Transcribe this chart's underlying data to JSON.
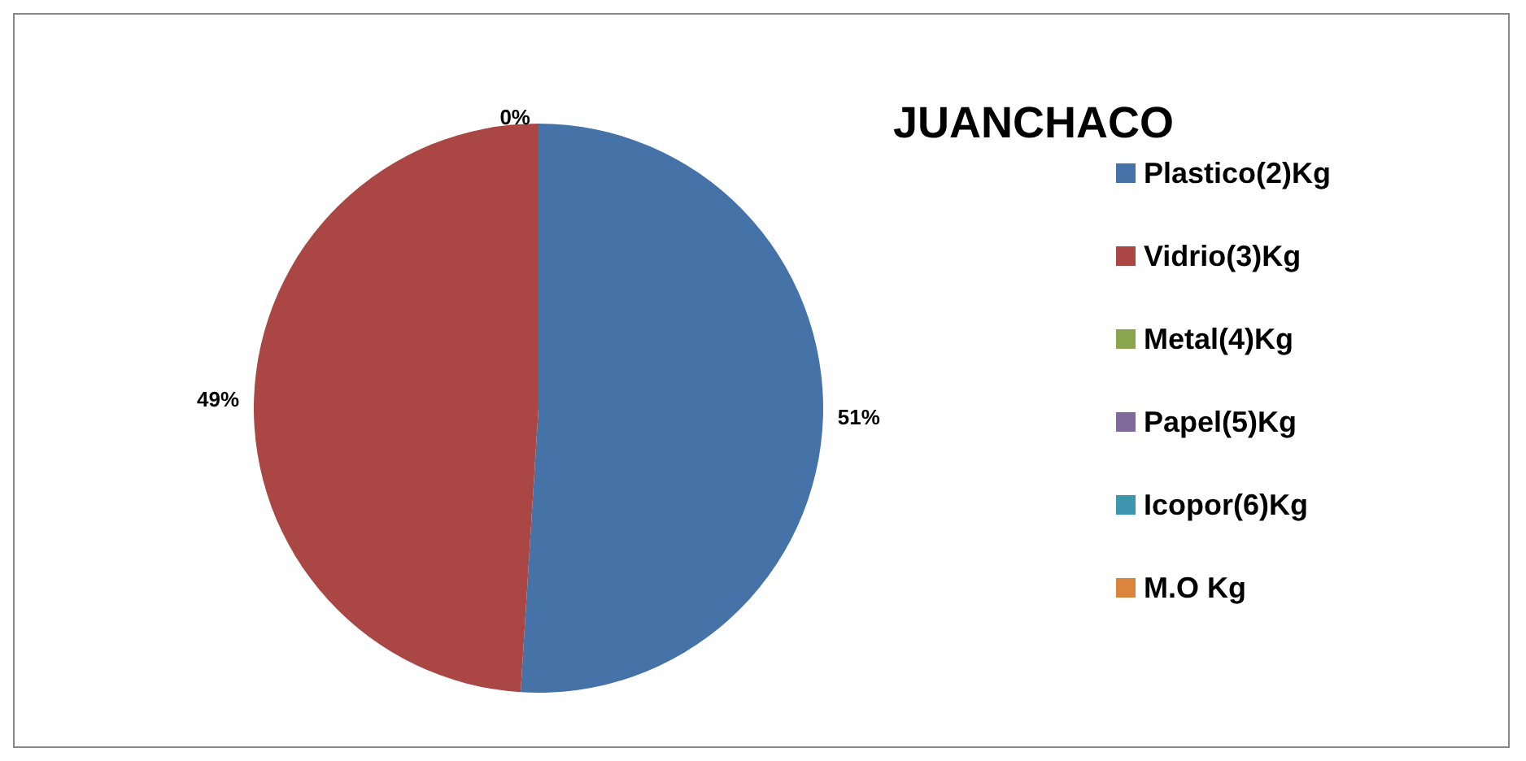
{
  "chart_data": {
    "type": "pie",
    "title": "JUANCHACO",
    "categories": [
      "Plastico(2)Kg",
      "Vidrio(3)Kg",
      "Metal(4)Kg",
      "Papel(5)Kg",
      "Icopor(6)Kg",
      "M.O Kg"
    ],
    "values": [
      51,
      49,
      0,
      0,
      0,
      0
    ],
    "colors": [
      "#4572a7",
      "#aa4643",
      "#89a54e",
      "#80699b",
      "#3d96ae",
      "#db843d"
    ],
    "value_labels": [
      "51%",
      "49%",
      "0%",
      null,
      null,
      null
    ],
    "legend": "right"
  }
}
